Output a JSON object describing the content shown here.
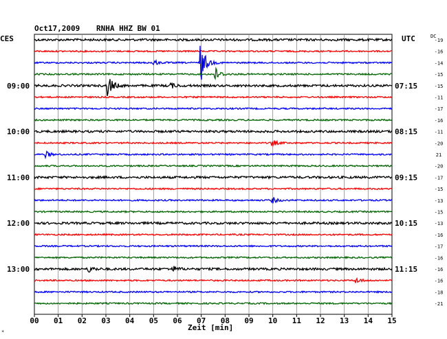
{
  "header": {
    "date": "Oct17,2009",
    "station": "RNHA HHZ BW 01",
    "left_tz": "CES",
    "right_tz": "UTC",
    "dc_label": "DC"
  },
  "footer": {
    "xlabel": "Zeit [min]",
    "corner_mark": "*"
  },
  "colors": {
    "trace_cycle": [
      "#000000",
      "#ff0000",
      "#0000ff",
      "#006600"
    ],
    "grid": "#888888",
    "background": "#ffffff"
  },
  "chart_data": {
    "type": "line",
    "title": "Oct17,2009 RNHA HHZ BW 01",
    "xlabel": "Zeit [min]",
    "xlim": [
      0,
      15
    ],
    "x_ticks": [
      "00",
      "01",
      "02",
      "03",
      "04",
      "05",
      "06",
      "07",
      "08",
      "09",
      "10",
      "11",
      "12",
      "13",
      "14",
      "15"
    ],
    "grid": true,
    "rows_per_hour": 4,
    "left_hour_labels": [
      "09:00",
      "10:00",
      "11:00",
      "12:00",
      "13:00"
    ],
    "right_time_labels": [
      "07:15",
      "08:15",
      "09:15",
      "10:15",
      "11:15"
    ],
    "label_row_indices": [
      4,
      8,
      12,
      16,
      20
    ],
    "dc_offsets": [
      "-19",
      "-16",
      "-14",
      "-15",
      "-15",
      "-11",
      "-17",
      "-16",
      "-11",
      "-20",
      "21",
      "-20",
      "-17",
      "-15",
      "-13",
      "-15",
      "-13",
      "-16",
      "-17",
      "-16",
      "-16",
      "-16",
      "-18",
      "-21"
    ],
    "events": [
      {
        "row": 2,
        "minute": 7.0,
        "amplitude": "very large"
      },
      {
        "row": 3,
        "minute": 7.6,
        "amplitude": "medium"
      },
      {
        "row": 2,
        "minute": 5.0,
        "amplitude": "small"
      },
      {
        "row": 4,
        "minute": 3.1,
        "amplitude": "large"
      },
      {
        "row": 4,
        "minute": 5.7,
        "amplitude": "small"
      },
      {
        "row": 10,
        "minute": 0.5,
        "amplitude": "small"
      },
      {
        "row": 9,
        "minute": 10.0,
        "amplitude": "small"
      },
      {
        "row": 14,
        "minute": 10.0,
        "amplitude": "small"
      },
      {
        "row": 20,
        "minute": 2.3,
        "amplitude": "small"
      },
      {
        "row": 20,
        "minute": 5.8,
        "amplitude": "small"
      },
      {
        "row": 21,
        "minute": 13.5,
        "amplitude": "small"
      }
    ]
  }
}
